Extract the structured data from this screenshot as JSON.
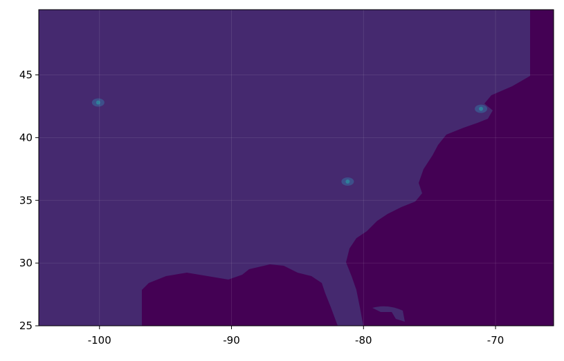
{
  "chart_data": {
    "type": "heatmap",
    "title": "",
    "xlabel": "",
    "ylabel": "",
    "xlim": [
      -104.6,
      -65.6
    ],
    "ylim": [
      25,
      50.2
    ],
    "x_ticks": [
      "-100",
      "-90",
      "-80",
      "-70"
    ],
    "x_tick_values": [
      -100,
      -90,
      -80,
      -70
    ],
    "y_ticks": [
      "25",
      "30",
      "35",
      "40",
      "45"
    ],
    "y_tick_values": [
      25,
      30,
      35,
      40,
      45
    ],
    "grid": true,
    "colormap": "viridis",
    "colors": {
      "ocean": "#440154",
      "land": "#45296f",
      "hotspot": "#2f7f9a"
    },
    "hotspots": [
      {
        "lon": -100.1,
        "lat": 42.8
      },
      {
        "lon": -81.2,
        "lat": 36.5
      },
      {
        "lon": -71.1,
        "lat": 42.3
      }
    ]
  }
}
